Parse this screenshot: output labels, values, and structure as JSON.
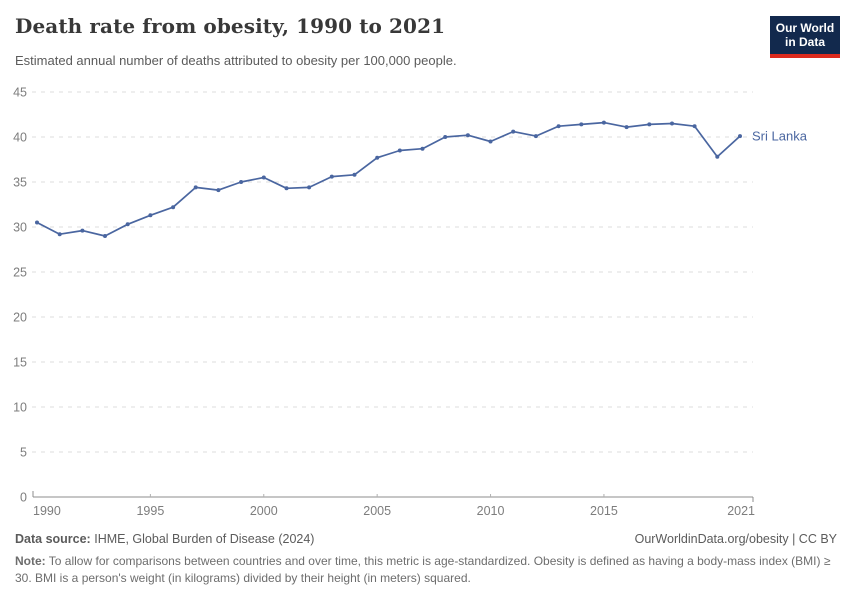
{
  "header": {
    "title": "Death rate from obesity, 1990 to 2021",
    "subtitle": "Estimated annual number of deaths attributed to obesity per 100,000 people.",
    "logo": {
      "line1": "Our World",
      "line2": "in Data"
    }
  },
  "chart_data": {
    "type": "line",
    "title": "Death rate from obesity, 1990 to 2021",
    "xlabel": "",
    "ylabel": "",
    "xlim": [
      1990,
      2021
    ],
    "ylim": [
      0,
      45
    ],
    "yticks": [
      0,
      5,
      10,
      15,
      20,
      25,
      30,
      35,
      40,
      45
    ],
    "xticks": [
      1990,
      1995,
      2000,
      2005,
      2010,
      2015,
      2021
    ],
    "grid": "horizontal-dashed",
    "legend_position": "end-of-line-label",
    "series": [
      {
        "name": "Sri Lanka",
        "color": "#4a66a0",
        "x": [
          1990,
          1991,
          1992,
          1993,
          1994,
          1995,
          1996,
          1997,
          1998,
          1999,
          2000,
          2001,
          2002,
          2003,
          2004,
          2005,
          2006,
          2007,
          2008,
          2009,
          2010,
          2011,
          2012,
          2013,
          2014,
          2015,
          2016,
          2017,
          2018,
          2019,
          2020,
          2021
        ],
        "values": [
          30.5,
          29.2,
          29.6,
          29.0,
          30.3,
          31.3,
          32.2,
          34.4,
          34.1,
          35.0,
          35.5,
          34.3,
          34.4,
          35.6,
          35.8,
          37.7,
          38.5,
          38.7,
          40.0,
          40.2,
          39.5,
          40.6,
          40.1,
          41.2,
          41.4,
          41.6,
          41.1,
          41.4,
          41.5,
          41.2,
          37.8,
          40.1
        ]
      }
    ]
  },
  "footer": {
    "source_label": "Data source:",
    "source_text": "IHME, Global Burden of Disease (2024)",
    "attribution": "OurWorldinData.org/obesity | CC BY",
    "note_label": "Note:",
    "note_text": "To allow for comparisons between countries and over time, this metric is age-standardized. Obesity is defined as having a body-mass index (BMI) ≥ 30. BMI is a person's weight (in kilograms) divided by their height (in meters) squared."
  },
  "colors": {
    "line": "#4a66a0",
    "grid": "#dcdcdc",
    "axis": "#8c8c8c",
    "tick_label": "#7d7d7d",
    "logo_bg": "#12294d",
    "logo_accent": "#dc2a1d"
  }
}
